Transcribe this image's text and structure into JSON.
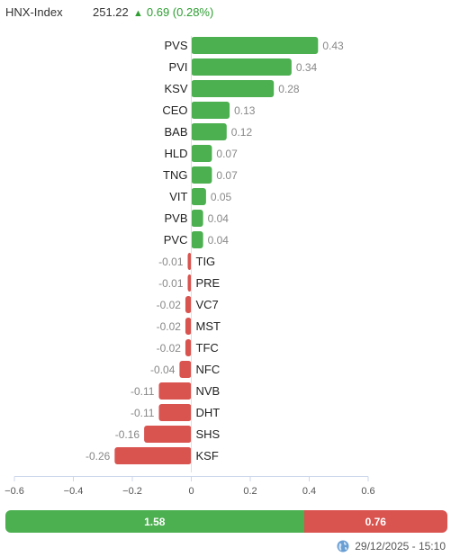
{
  "header": {
    "index_name": "HNX-Index",
    "index_value": "251.22",
    "change_text": "0.69 (0.28%)",
    "arrow": "▲",
    "arrow_icon": "triangle-up-icon",
    "up_color": "#2e9e32"
  },
  "chart_data": {
    "type": "bar",
    "orientation": "horizontal",
    "categories": [
      "PVS",
      "PVI",
      "KSV",
      "CEO",
      "BAB",
      "HLD",
      "TNG",
      "VIT",
      "PVB",
      "PVC",
      "TIG",
      "PRE",
      "VC7",
      "MST",
      "TFC",
      "NFC",
      "NVB",
      "DHT",
      "SHS",
      "KSF"
    ],
    "values": [
      0.43,
      0.34,
      0.28,
      0.13,
      0.12,
      0.07,
      0.07,
      0.05,
      0.04,
      0.04,
      -0.01,
      -0.01,
      -0.02,
      -0.02,
      -0.02,
      -0.04,
      -0.11,
      -0.11,
      -0.16,
      -0.26
    ],
    "value_labels": [
      "0.43",
      "0.34",
      "0.28",
      "0.13",
      "0.12",
      "0.07",
      "0.07",
      "0.05",
      "0.04",
      "0.04",
      "-0.01",
      "-0.01",
      "-0.02",
      "-0.02",
      "-0.02",
      "-0.04",
      "-0.11",
      "-0.11",
      "-0.16",
      "-0.26"
    ],
    "xlim": [
      -0.6,
      0.6
    ],
    "x_ticks": [
      -0.6,
      -0.4,
      -0.2,
      0,
      0.2,
      0.4,
      0.6
    ],
    "x_tick_labels": [
      "−0.6",
      "−0.4",
      "−0.2",
      "0",
      "0.2",
      "0.4",
      "0.6"
    ],
    "grid": false,
    "positive_color": "#4caf50",
    "negative_color": "#d9534f"
  },
  "breadth": {
    "up_label": "1.58",
    "up_value": 1.58,
    "down_label": "0.76",
    "down_value": 0.76,
    "up_color": "#4caf50",
    "down_color": "#d9534f"
  },
  "footer": {
    "timestamp": "29/12/2025 - 15:10",
    "icon": "globe-icon"
  }
}
